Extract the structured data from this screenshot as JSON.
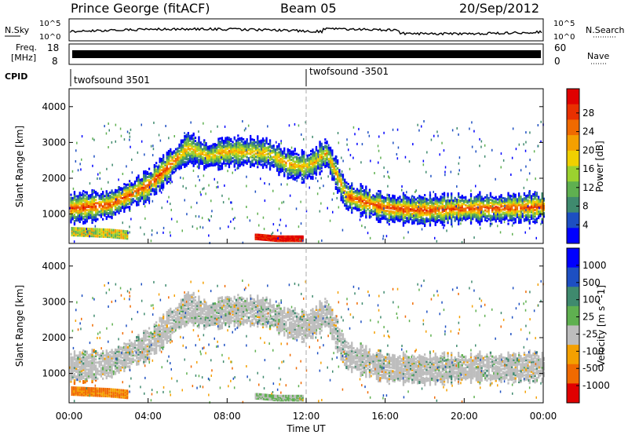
{
  "header": {
    "station": "Prince George (fitACF)",
    "beam": "Beam 05",
    "date": "20/Sep/2012"
  },
  "top_panels": {
    "nsky_label": "N.Sky",
    "nsky_ticks": [
      "10^5",
      "10^0"
    ],
    "nsearch_label": "N.Search",
    "nsearch_ticks": [
      "10^5",
      "10^0"
    ],
    "freq_label_1": "Freq.",
    "freq_label_2": "[MHz]",
    "freq_ticks": [
      "18",
      "8"
    ],
    "nave_label": "Nave",
    "nave_ticks": [
      "60",
      "0"
    ],
    "cpid_label": "CPID",
    "cpid_segments": [
      {
        "label": "twofsound 3501",
        "start_hour": 0
      },
      {
        "label": "twofsound -3501",
        "start_hour": 12
      }
    ]
  },
  "chart_data": [
    {
      "type": "heatmap",
      "name": "power",
      "xlabel": "",
      "ylabel": "Slant Range [km]",
      "xlim": [
        0,
        24
      ],
      "ylim": [
        180,
        4500
      ],
      "yticks": [
        1000,
        2000,
        3000,
        4000
      ],
      "colorbar": {
        "label": "Power [dB]",
        "ticks": [
          "4",
          "8",
          "12",
          "16",
          "20",
          "24",
          "28"
        ],
        "range": [
          0,
          30
        ],
        "colors": [
          "#0000ff",
          "#1d4fc2",
          "#3f8a6e",
          "#5fb050",
          "#9bd12f",
          "#f0d000",
          "#f4a000",
          "#f06a00",
          "#e93000",
          "#e00000"
        ]
      },
      "bands": [
        {
          "range_km_at_hour": [
            [
              0,
              1150
            ],
            [
              2,
              1250
            ],
            [
              4,
              1800
            ],
            [
              6,
              2850
            ],
            [
              7,
              2600
            ],
            [
              8,
              2750
            ],
            [
              10,
              2700
            ],
            [
              11,
              2400
            ],
            [
              12,
              2300
            ],
            [
              13,
              2700
            ],
            [
              14,
              1500
            ],
            [
              16,
              1150
            ],
            [
              18,
              1100
            ],
            [
              20,
              1150
            ],
            [
              22,
              1150
            ],
            [
              24,
              1200
            ]
          ],
          "typical_power_db": 24
        },
        {
          "range_km_at_hour": [
            [
              9.5,
              350
            ],
            [
              10.5,
              300
            ],
            [
              11.5,
              300
            ]
          ],
          "typical_power_db": 28
        },
        {
          "range_km_at_hour": [
            [
              0,
              500
            ],
            [
              2,
              450
            ],
            [
              3,
              400
            ]
          ],
          "typical_power_db": 16
        }
      ]
    },
    {
      "type": "heatmap",
      "name": "velocity",
      "xlabel": "Time UT",
      "ylabel": "Slant Range [km]",
      "xlim": [
        0,
        24
      ],
      "ylim": [
        180,
        4500
      ],
      "yticks": [
        1000,
        2000,
        3000,
        4000
      ],
      "xticks": [
        "00:00",
        "04:00",
        "08:00",
        "12:00",
        "16:00",
        "20:00",
        "00:00"
      ],
      "colorbar": {
        "label": "Velocity [m s^-1]",
        "ticks": [
          "1000",
          "500",
          "100",
          "25",
          "-25",
          "-100",
          "-500",
          "-1000"
        ],
        "colors": [
          "#0000ff",
          "#1d4fc2",
          "#3f8a6e",
          "#5fb050",
          "#bdbdbd",
          "#f4a000",
          "#f06a00",
          "#e00000"
        ]
      }
    }
  ]
}
